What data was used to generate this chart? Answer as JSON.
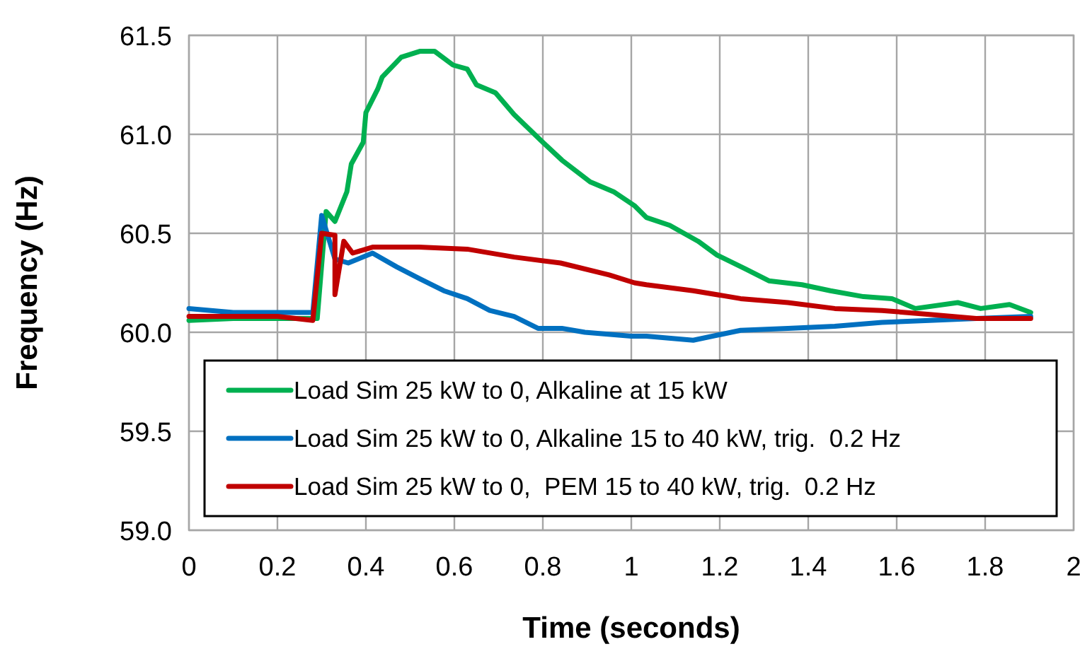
{
  "chart_data": {
    "type": "line",
    "xlabel": "Time (seconds)",
    "ylabel": "Frequency (Hz)",
    "xlim": [
      0,
      2
    ],
    "xticks": [
      0,
      0.2,
      0.4,
      0.6,
      0.8,
      1,
      1.2,
      1.4,
      1.6,
      1.8,
      2
    ],
    "ylim": [
      59,
      61.5
    ],
    "yticks": [
      {
        "value": 59,
        "label": "59.0"
      },
      {
        "value": 59.5,
        "label": "59.5"
      },
      {
        "value": 60,
        "label": "60.0"
      },
      {
        "value": 60.5,
        "label": "60.5"
      },
      {
        "value": 61,
        "label": "61.0"
      },
      {
        "value": 61.5,
        "label": "61.5"
      }
    ],
    "grid": true,
    "legend": "bottom",
    "marker": "none",
    "line_style": "solid",
    "series": [
      {
        "name": "Load Sim 25 kW to 0, Alkaline at 15 kW",
        "color": "#00b050",
        "x": [
          0,
          0.1,
          0.2,
          0.29,
          0.31,
          0.33,
          0.357,
          0.367,
          0.394,
          0.4,
          0.427,
          0.437,
          0.48,
          0.523,
          0.555,
          0.597,
          0.629,
          0.65,
          0.693,
          0.735,
          0.8,
          0.843,
          0.907,
          0.96,
          1.007,
          1.034,
          1.087,
          1.151,
          1.194,
          1.258,
          1.311,
          1.386,
          1.45,
          1.525,
          1.589,
          1.642,
          1.738,
          1.79,
          1.855,
          1.903
        ],
        "values": [
          60.06,
          60.07,
          60.07,
          60.07,
          60.61,
          60.56,
          60.71,
          60.85,
          60.96,
          61.11,
          61.23,
          61.29,
          61.39,
          61.42,
          61.42,
          61.35,
          61.33,
          61.25,
          61.21,
          61.1,
          60.96,
          60.87,
          60.76,
          60.71,
          60.64,
          60.58,
          60.54,
          60.46,
          60.39,
          60.32,
          60.26,
          60.24,
          60.21,
          60.18,
          60.17,
          60.12,
          60.15,
          60.12,
          60.14,
          60.1
        ]
      },
      {
        "name": "Load Sim 25 kW to 0, Alkaline 15 to 40 kW, trig.  0.2 Hz",
        "color": "#0070c0",
        "x": [
          0,
          0.1,
          0.2,
          0.28,
          0.3,
          0.33,
          0.36,
          0.415,
          0.47,
          0.522,
          0.576,
          0.629,
          0.68,
          0.735,
          0.789,
          0.843,
          0.895,
          1,
          1.034,
          1.14,
          1.247,
          1.354,
          1.46,
          1.567,
          1.674,
          1.78,
          1.903
        ],
        "values": [
          60.12,
          60.1,
          60.1,
          60.1,
          60.59,
          60.37,
          60.35,
          60.4,
          60.33,
          60.27,
          60.21,
          60.17,
          60.11,
          60.08,
          60.02,
          60.02,
          60,
          59.98,
          59.98,
          59.96,
          60.01,
          60.02,
          60.03,
          60.05,
          60.06,
          60.07,
          60.08
        ]
      },
      {
        "name": "Load Sim 25 kW to 0,  PEM 15 to 40 kW, trig.  0.2 Hz",
        "color": "#c00000",
        "x": [
          0,
          0.1,
          0.2,
          0.28,
          0.3,
          0.33,
          0.33,
          0.35,
          0.37,
          0.415,
          0.52,
          0.629,
          0.735,
          0.84,
          0.95,
          1.007,
          1.034,
          1.14,
          1.247,
          1.354,
          1.46,
          1.567,
          1.674,
          1.78,
          1.903
        ],
        "values": [
          60.08,
          60.08,
          60.08,
          60.06,
          60.5,
          60.49,
          60.19,
          60.46,
          60.4,
          60.43,
          60.43,
          60.42,
          60.38,
          60.35,
          60.29,
          60.25,
          60.24,
          60.21,
          60.17,
          60.15,
          60.12,
          60.11,
          60.09,
          60.07,
          60.07
        ]
      }
    ]
  }
}
